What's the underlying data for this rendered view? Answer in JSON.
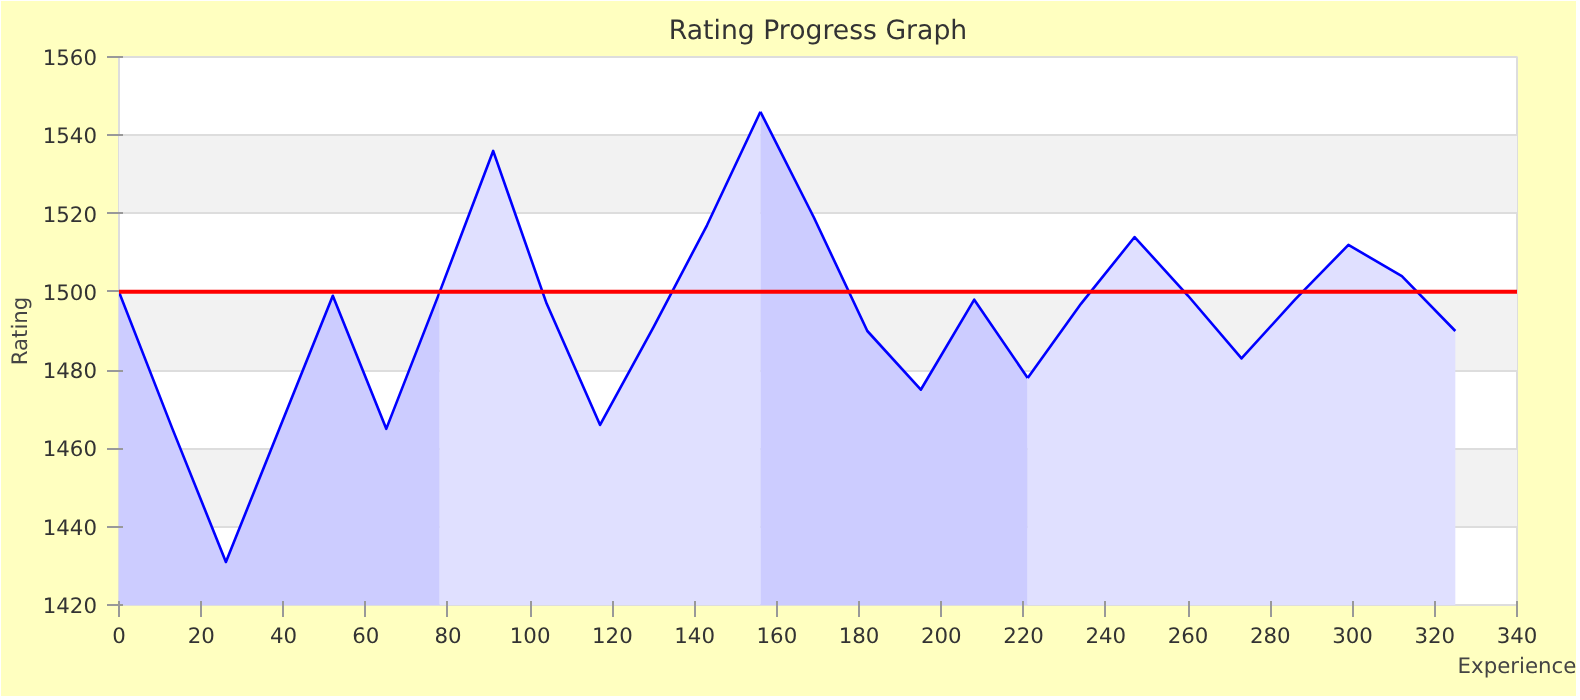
{
  "chart_data": {
    "type": "area",
    "title": "Rating Progress Graph",
    "xlabel": "Experience",
    "ylabel": "Rating",
    "series": [
      {
        "color": "#ccccff",
        "x": [
          0,
          13,
          26,
          39,
          52,
          65,
          78
        ],
        "values": [
          1500,
          1465,
          1431,
          1465,
          1499,
          1465,
          1500
        ]
      },
      {
        "color": "#e0e0ff",
        "x": [
          78,
          91,
          104,
          117,
          130,
          143,
          156
        ],
        "values": [
          1500,
          1536,
          1497,
          1466,
          1491,
          1517,
          1546
        ]
      },
      {
        "color": "#ccccff",
        "x": [
          156,
          169,
          182,
          195,
          208,
          221
        ],
        "values": [
          1546,
          1519,
          1490,
          1475,
          1498,
          1478
        ]
      },
      {
        "color": "#e0e0ff",
        "x": [
          221,
          234,
          247,
          260,
          273,
          286,
          299,
          312,
          325
        ],
        "values": [
          1478,
          1497,
          1514,
          1499,
          1483,
          1498,
          1512,
          1504,
          1490
        ]
      }
    ],
    "xlim": [
      0,
      340
    ],
    "xticks": [
      0,
      20,
      40,
      60,
      80,
      100,
      120,
      140,
      160,
      180,
      200,
      220,
      240,
      260,
      280,
      300,
      320,
      340
    ],
    "ylim": [
      1420,
      1560
    ],
    "yticks": [
      1420,
      1440,
      1460,
      1480,
      1500,
      1520,
      1540,
      1560
    ],
    "ref_lines": [
      {
        "axis": "y",
        "value": 1500,
        "color": "#ff0000"
      }
    ],
    "grid": "y"
  }
}
